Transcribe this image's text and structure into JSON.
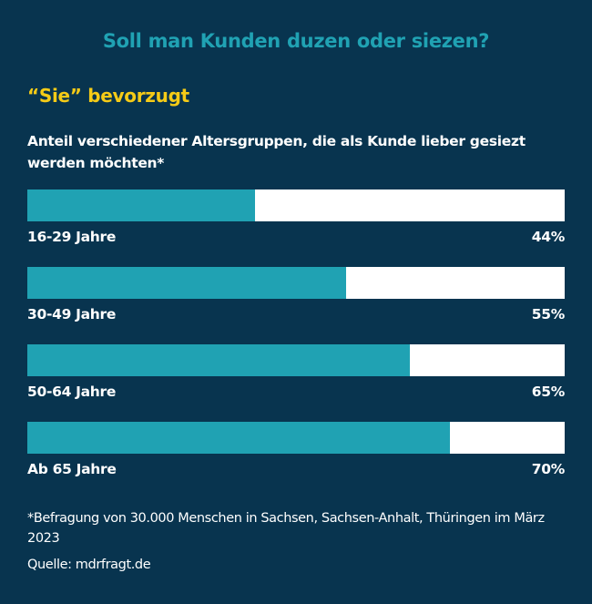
{
  "header": {
    "title": "Soll man Kunden duzen oder siezen?",
    "subtitle": "“Sie” bevorzugt",
    "description": "Anteil verschiedener Altersgruppen, die als Kunde lieber gesiezt werden möchten*"
  },
  "bars": [
    {
      "label": "16-29 Jahre",
      "value_text": "44%",
      "fill_width": "42.4%"
    },
    {
      "label": "30-49 Jahre",
      "value_text": "55%",
      "fill_width": "59.3%"
    },
    {
      "label": "50-64 Jahre",
      "value_text": "65%",
      "fill_width": "71.2%"
    },
    {
      "label": "Ab 65 Jahre",
      "value_text": "70%",
      "fill_width": "78.6%"
    }
  ],
  "footer": {
    "footnote": "*Befragung von 30.000 Menschen in Sachsen, Sachsen-Anhalt, Thüringen im März 2023",
    "source": "Quelle: mdrfragt.de"
  },
  "colors": {
    "background": "#08344f",
    "title": "#20a2b3",
    "subtitle": "#f5cb17",
    "bar_fill": "#20a2b3",
    "bar_track": "#ffffff"
  },
  "chart_data": {
    "type": "bar",
    "orientation": "horizontal",
    "title": "Soll man Kunden duzen oder siezen?",
    "subtitle": "“Sie” bevorzugt",
    "description": "Anteil verschiedener Altersgruppen, die als Kunde lieber gesiezt werden möchten*",
    "categories": [
      "16-29 Jahre",
      "30-49 Jahre",
      "50-64 Jahre",
      "Ab 65 Jahre"
    ],
    "values": [
      44,
      55,
      65,
      70
    ],
    "unit": "%",
    "xlim": [
      0,
      100
    ],
    "grid": false,
    "legend": null,
    "annotations": [
      "*Befragung von 30.000 Menschen in Sachsen, Sachsen-Anhalt, Thüringen im März 2023",
      "Quelle: mdrfragt.de"
    ]
  }
}
